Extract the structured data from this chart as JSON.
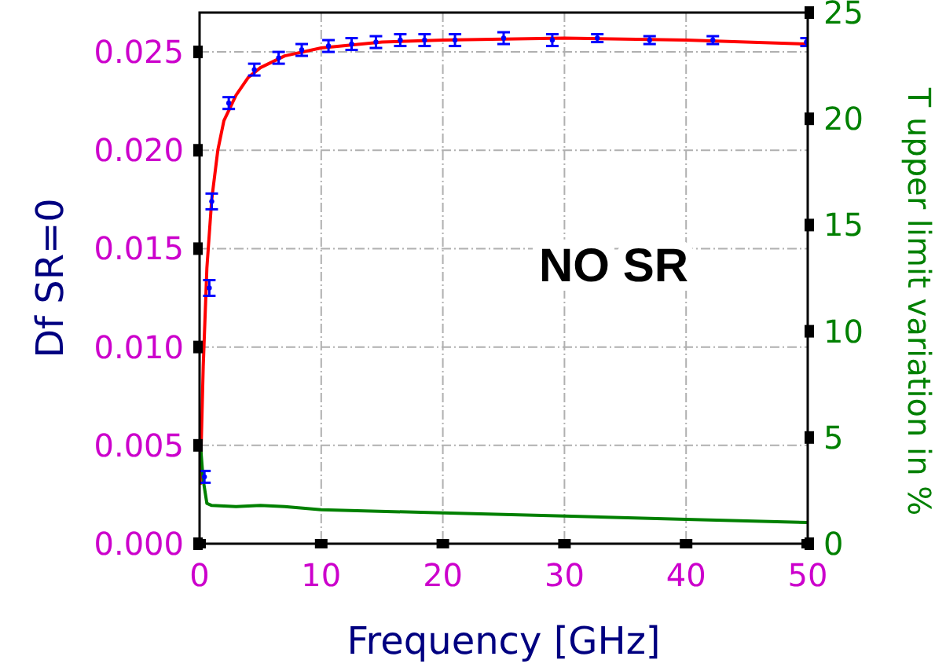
{
  "chart_data": {
    "type": "scatter",
    "xlabel": "Frequency [GHz]",
    "ylabel": "Df SR=0",
    "y2label": "T upper limit variation in %",
    "xlim": [
      0,
      50
    ],
    "xticks": [
      0,
      10,
      20,
      30,
      40,
      50
    ],
    "ylim": [
      0,
      0.027
    ],
    "yticks": [
      {
        "value": 0,
        "label": "0.000"
      },
      {
        "value": 0.005,
        "label": "0.005"
      },
      {
        "value": 0.01,
        "label": "0.010"
      },
      {
        "value": 0.015,
        "label": "0.015"
      },
      {
        "value": 0.02,
        "label": "0.020"
      },
      {
        "value": 0.025,
        "label": "0.025"
      }
    ],
    "y2lim": [
      0,
      25
    ],
    "y2ticks": [
      0,
      5,
      10,
      15,
      20,
      25
    ],
    "grid": true,
    "annotations": [
      "NO SR"
    ],
    "series": [
      {
        "color": "#0000ff",
        "marker": "circle",
        "x": [
          0.4,
          0.8,
          1.0,
          2.4,
          4.5,
          6.5,
          8.4,
          10.6,
          12.5,
          14.5,
          16.5,
          18.5,
          21,
          25,
          29,
          32.7,
          37,
          42.2,
          49.9
        ],
        "values": [
          0.0034,
          0.013,
          0.0174,
          0.0224,
          0.0241,
          0.0247,
          0.0251,
          0.0253,
          0.0254,
          0.0255,
          0.0256,
          0.0256,
          0.0256,
          0.0257,
          0.0256,
          0.0257,
          0.0256,
          0.0256,
          0.0255
        ],
        "errors": [
          0.0003,
          0.0004,
          0.0004,
          0.0003,
          0.0003,
          0.0003,
          0.0003,
          0.0003,
          0.0003,
          0.0003,
          0.0003,
          0.0003,
          0.0003,
          0.0003,
          0.0003,
          0.0002,
          0.0002,
          0.0002,
          0.0002
        ]
      },
      {
        "type": "line",
        "color": "#ff0000",
        "line_style": "solid",
        "x": [
          0.05,
          0.3,
          0.6,
          1,
          1.5,
          2,
          3,
          4,
          5,
          7,
          10,
          15,
          20,
          30,
          40,
          50
        ],
        "values": [
          0.003,
          0.009,
          0.014,
          0.0175,
          0.02,
          0.0215,
          0.0228,
          0.0237,
          0.0242,
          0.0248,
          0.0252,
          0.0255,
          0.0256,
          0.0257,
          0.0256,
          0.0254
        ]
      },
      {
        "type": "line",
        "color": "#008000",
        "axis": "y2",
        "line_style": "solid",
        "x": [
          0.05,
          0.3,
          0.6,
          1,
          3,
          5,
          7,
          10,
          20,
          30,
          40,
          50
        ],
        "values": [
          4.8,
          3,
          1.9,
          1.8,
          1.75,
          1.8,
          1.75,
          1.6,
          1.45,
          1.3,
          1.15,
          1.0
        ]
      }
    ]
  }
}
